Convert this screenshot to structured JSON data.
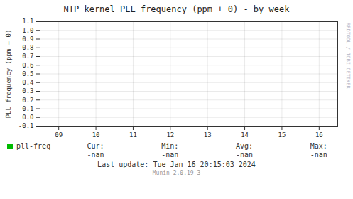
{
  "chart_data": {
    "type": "line",
    "title": "NTP kernel PLL frequency (ppm + 0) - by week",
    "ylabel": "PLL frequency (ppm + 0)",
    "x": [],
    "series": [
      {
        "name": "pll-freq",
        "color": "#00bb00",
        "values": []
      }
    ],
    "xlim": [
      8.5,
      16.5
    ],
    "xticks": [
      {
        "value": 9,
        "label": "09"
      },
      10,
      11,
      12,
      13,
      14,
      15,
      16
    ],
    "ylim": [
      -0.1,
      1.1
    ],
    "yticks": [
      -0.1,
      {
        "value": 0,
        "label": "0.0"
      },
      0.1,
      0.2,
      0.3,
      0.4,
      0.5,
      0.6,
      0.7,
      0.8,
      0.9,
      {
        "value": 1,
        "label": "1.0"
      },
      1.1
    ],
    "grid": true,
    "legend": "bottom",
    "stats": [
      {
        "label": "Cur:",
        "x": 10,
        "value": "-nan"
      },
      {
        "label": "Min:",
        "x": 12,
        "value": "-nan"
      },
      {
        "label": "Avg:",
        "x": 14,
        "value": "-nan"
      },
      {
        "label": "Max:",
        "x": 16,
        "value": "-nan"
      }
    ],
    "annotations": [
      "Last update:  Tue Jan 16 20:15:03 2024",
      "Munin 2.0.19-3",
      "RRDTOOL / TOBI OETIKER"
    ]
  }
}
